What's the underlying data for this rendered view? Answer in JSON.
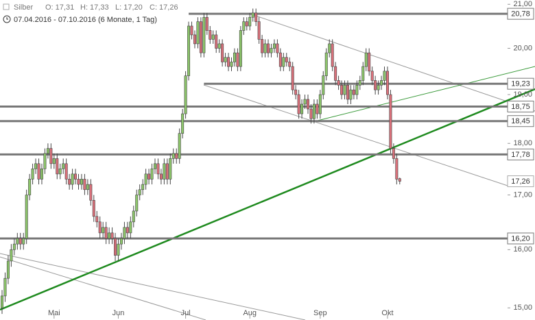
{
  "header": {
    "instrument": "Silber",
    "ohlc": [
      "O: 17,31",
      "H: 17,33",
      "L: 17,20",
      "C: 17,26"
    ],
    "range": "07.04.2016 - 07.10.2016 (6 Monate, 1 Tag)"
  },
  "chart_data": {
    "type": "candlestick",
    "log_scale": true,
    "up_color": "#8cc56a",
    "down_color": "#d9707a",
    "ylim": [
      14.8,
      21.1
    ],
    "yticks": [
      {
        "value": 15,
        "label": "15,00"
      },
      {
        "value": 16,
        "label": "16,00"
      },
      {
        "value": 17,
        "label": "17,00"
      },
      {
        "value": 18,
        "label": "18,00"
      },
      {
        "value": 19,
        "label": "19,00"
      },
      {
        "value": 20,
        "label": "20,00"
      },
      {
        "value": 21,
        "label": "21,00"
      }
    ],
    "xticks": [
      {
        "value": 17,
        "label": "Mai"
      },
      {
        "value": 38,
        "label": "Jun"
      },
      {
        "value": 60,
        "label": "Jul"
      },
      {
        "value": 81,
        "label": "Aug"
      },
      {
        "value": 104,
        "label": "Sep"
      },
      {
        "value": 126,
        "label": "Okt"
      }
    ],
    "levels": [
      {
        "value": 20.78,
        "label": "20,78"
      },
      {
        "value": 19.23,
        "label": "19,23"
      },
      {
        "value": 18.75,
        "label": "18,75"
      },
      {
        "value": 18.45,
        "label": "18,45"
      },
      {
        "value": 17.78,
        "label": "17,78"
      },
      {
        "value": 16.2,
        "label": "16,20"
      }
    ],
    "last": {
      "value": 17.26,
      "label": "17,26"
    },
    "open": [
      15.0,
      15.2,
      15.5,
      15.8,
      16.0,
      16.1,
      16.2,
      16.1,
      16.2,
      17.0,
      17.3,
      17.5,
      17.6,
      17.3,
      17.5,
      17.8,
      17.9,
      17.6,
      17.7,
      17.4,
      17.5,
      17.6,
      17.3,
      17.2,
      17.4,
      17.3,
      17.2,
      17.3,
      17.1,
      17.2,
      16.9,
      16.6,
      16.5,
      16.3,
      16.4,
      16.2,
      16.3,
      16.2,
      15.9,
      16.1,
      16.2,
      16.4,
      16.3,
      16.5,
      16.7,
      17.0,
      17.1,
      17.2,
      17.4,
      17.3,
      17.5,
      17.6,
      17.4,
      17.3,
      17.6,
      17.3,
      17.7,
      17.8,
      17.7,
      18.2,
      18.6,
      19.4,
      20.5,
      20.3,
      20.1,
      20.6,
      19.9,
      20.7,
      20.4,
      20.2,
      20.3,
      20.0,
      20.1,
      19.7,
      19.8,
      19.6,
      19.7,
      19.9,
      19.6,
      20.4,
      20.6,
      20.5,
      20.7,
      20.8,
      20.6,
      20.2,
      19.9,
      20.1,
      19.9,
      20.0,
      20.1,
      19.9,
      19.6,
      19.8,
      19.7,
      19.6,
      19.1,
      19.0,
      18.6,
      18.8,
      18.9,
      18.7,
      18.5,
      18.8,
      18.6,
      19.0,
      19.4,
      19.9,
      20.1,
      19.6,
      19.3,
      19.2,
      19.0,
      19.2,
      18.9,
      19.1,
      19.0,
      19.2,
      19.3,
      19.6,
      19.9,
      19.5,
      19.3,
      19.1,
      19.2,
      19.3,
      19.5,
      19.0,
      17.9,
      17.7,
      17.31
    ],
    "high": [
      15.3,
      15.6,
      15.9,
      16.1,
      16.2,
      16.3,
      16.3,
      16.3,
      17.1,
      17.4,
      17.6,
      17.7,
      17.7,
      17.6,
      17.9,
      18.0,
      18.0,
      17.8,
      17.8,
      17.6,
      17.7,
      17.7,
      17.4,
      17.5,
      17.5,
      17.4,
      17.4,
      17.4,
      17.3,
      17.3,
      17.0,
      16.7,
      16.6,
      16.5,
      16.5,
      16.4,
      16.4,
      16.3,
      16.2,
      16.3,
      16.5,
      16.5,
      16.6,
      16.8,
      17.1,
      17.2,
      17.3,
      17.5,
      17.5,
      17.6,
      17.7,
      17.7,
      17.5,
      17.7,
      17.7,
      17.8,
      17.9,
      17.9,
      18.3,
      18.7,
      19.5,
      20.6,
      20.6,
      20.4,
      20.7,
      20.7,
      20.8,
      20.8,
      20.5,
      20.4,
      20.4,
      20.2,
      20.2,
      19.9,
      19.9,
      19.8,
      20.0,
      20.0,
      20.5,
      20.7,
      20.7,
      20.8,
      20.9,
      20.9,
      20.7,
      20.3,
      20.2,
      20.2,
      20.1,
      20.2,
      20.2,
      20.0,
      19.9,
      19.9,
      19.8,
      19.7,
      19.2,
      19.1,
      18.9,
      19.0,
      19.0,
      18.8,
      18.9,
      18.9,
      19.1,
      19.5,
      20.0,
      20.2,
      20.2,
      19.7,
      19.4,
      19.3,
      19.3,
      19.3,
      19.2,
      19.2,
      19.3,
      19.4,
      19.7,
      20.0,
      20.0,
      19.6,
      19.4,
      19.3,
      19.4,
      19.6,
      19.6,
      19.1,
      18.0,
      17.8,
      17.33
    ],
    "low": [
      14.9,
      15.1,
      15.4,
      15.7,
      15.9,
      16.0,
      16.0,
      16.0,
      16.1,
      16.9,
      17.2,
      17.4,
      17.2,
      17.2,
      17.4,
      17.7,
      17.5,
      17.5,
      17.3,
      17.3,
      17.4,
      17.2,
      17.1,
      17.1,
      17.2,
      17.1,
      17.1,
      17.0,
      17.0,
      16.8,
      16.5,
      16.4,
      16.2,
      16.2,
      16.1,
      16.1,
      16.1,
      15.8,
      15.8,
      16.0,
      16.1,
      16.2,
      16.2,
      16.4,
      16.6,
      16.9,
      17.0,
      17.1,
      17.2,
      17.2,
      17.4,
      17.3,
      17.2,
      17.2,
      17.2,
      17.2,
      17.6,
      17.6,
      17.6,
      18.1,
      18.5,
      19.3,
      20.2,
      20.0,
      20.0,
      19.8,
      19.8,
      20.3,
      20.1,
      20.1,
      19.9,
      19.9,
      19.6,
      19.6,
      19.5,
      19.5,
      19.6,
      19.5,
      19.5,
      20.3,
      20.4,
      20.4,
      20.6,
      20.5,
      20.1,
      19.8,
      19.8,
      19.8,
      19.8,
      19.9,
      19.8,
      19.5,
      19.5,
      19.6,
      19.5,
      19.0,
      18.9,
      18.5,
      18.5,
      18.7,
      18.6,
      18.4,
      18.4,
      18.5,
      18.5,
      18.9,
      19.3,
      19.8,
      19.5,
      19.2,
      19.1,
      18.9,
      18.9,
      18.8,
      18.8,
      18.9,
      18.9,
      19.1,
      19.2,
      19.5,
      19.4,
      19.2,
      19.0,
      19.0,
      19.1,
      19.2,
      18.9,
      17.8,
      17.6,
      17.2,
      17.2
    ],
    "close": [
      15.2,
      15.5,
      15.8,
      16.0,
      16.1,
      16.2,
      16.1,
      16.2,
      17.0,
      17.3,
      17.5,
      17.6,
      17.3,
      17.5,
      17.8,
      17.9,
      17.6,
      17.7,
      17.4,
      17.5,
      17.6,
      17.3,
      17.2,
      17.4,
      17.3,
      17.2,
      17.3,
      17.1,
      17.2,
      16.9,
      16.6,
      16.5,
      16.3,
      16.4,
      16.2,
      16.3,
      16.2,
      15.9,
      16.1,
      16.2,
      16.4,
      16.3,
      16.5,
      16.7,
      17.0,
      17.1,
      17.2,
      17.4,
      17.3,
      17.5,
      17.6,
      17.4,
      17.3,
      17.6,
      17.3,
      17.7,
      17.8,
      17.7,
      18.2,
      18.6,
      19.4,
      20.5,
      20.3,
      20.1,
      20.6,
      19.9,
      20.7,
      20.4,
      20.2,
      20.3,
      20.0,
      20.1,
      19.7,
      19.8,
      19.6,
      19.7,
      19.9,
      19.6,
      20.4,
      20.6,
      20.5,
      20.7,
      20.8,
      20.6,
      20.2,
      19.9,
      20.1,
      19.9,
      20.0,
      20.1,
      19.9,
      19.6,
      19.8,
      19.7,
      19.6,
      19.1,
      19.0,
      18.6,
      18.8,
      18.9,
      18.7,
      18.5,
      18.8,
      18.6,
      19.0,
      19.4,
      19.9,
      20.1,
      19.6,
      19.3,
      19.2,
      19.0,
      19.2,
      18.9,
      19.1,
      19.0,
      19.2,
      19.3,
      19.6,
      19.9,
      19.5,
      19.3,
      19.1,
      19.2,
      19.3,
      19.5,
      19.0,
      17.9,
      17.7,
      17.3,
      17.26
    ]
  }
}
